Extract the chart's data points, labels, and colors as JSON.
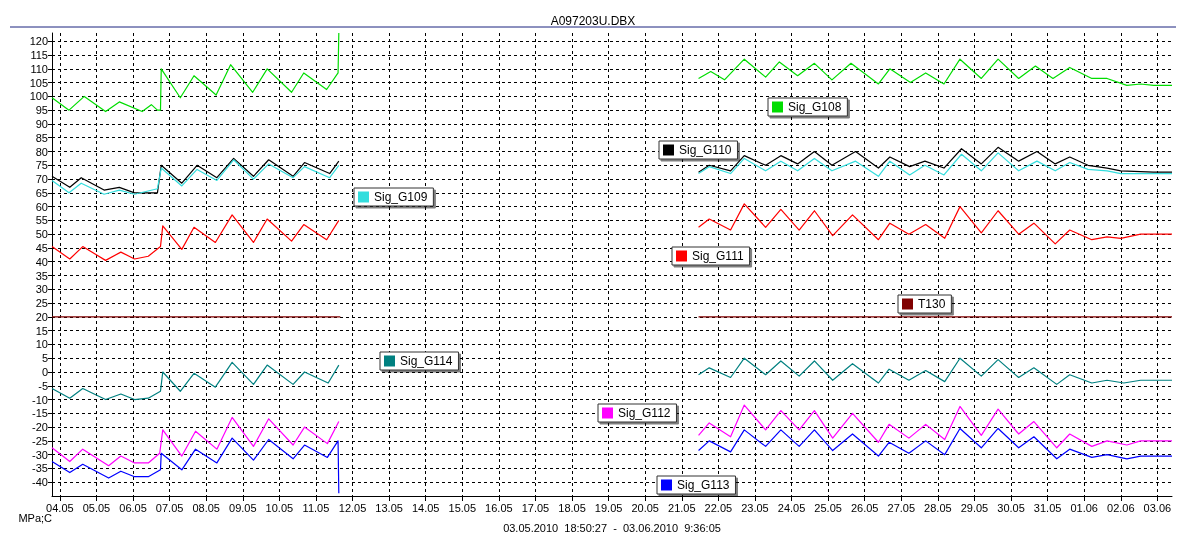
{
  "chart_data": {
    "type": "line",
    "title": "A097203U.DBX",
    "xlabel": "03.05.2010  18:50:27  -  03.06.2010  9:36:05",
    "ylabel": "MPa;C",
    "xlim": [
      "2010-05-03T18:50",
      "2010-06-03T09:36"
    ],
    "xticks": [
      {
        "value": "2010-05-04",
        "label": "04.05"
      },
      {
        "value": "2010-05-05",
        "label": "05.05"
      },
      {
        "value": "2010-05-06",
        "label": "06.05"
      },
      {
        "value": "2010-05-07",
        "label": "07.05"
      },
      {
        "value": "2010-05-08",
        "label": "08.05"
      },
      {
        "value": "2010-05-09",
        "label": "09.05"
      },
      {
        "value": "2010-05-10",
        "label": "10.05"
      },
      {
        "value": "2010-05-11",
        "label": "11.05"
      },
      {
        "value": "2010-05-12",
        "label": "12.05"
      },
      {
        "value": "2010-05-13",
        "label": "13.05"
      },
      {
        "value": "2010-05-14",
        "label": "14.05"
      },
      {
        "value": "2010-05-15",
        "label": "15.05"
      },
      {
        "value": "2010-05-16",
        "label": "16.05"
      },
      {
        "value": "2010-05-17",
        "label": "17.05"
      },
      {
        "value": "2010-05-18",
        "label": "18.05"
      },
      {
        "value": "2010-05-19",
        "label": "19.05"
      },
      {
        "value": "2010-05-20",
        "label": "20.05"
      },
      {
        "value": "2010-05-21",
        "label": "21.05"
      },
      {
        "value": "2010-05-22",
        "label": "22.05"
      },
      {
        "value": "2010-05-23",
        "label": "23.05"
      },
      {
        "value": "2010-05-24",
        "label": "24.05"
      },
      {
        "value": "2010-05-25",
        "label": "25.05"
      },
      {
        "value": "2010-05-26",
        "label": "26.05"
      },
      {
        "value": "2010-05-27",
        "label": "27.05"
      },
      {
        "value": "2010-05-28",
        "label": "28.05"
      },
      {
        "value": "2010-05-29",
        "label": "29.05"
      },
      {
        "value": "2010-05-30",
        "label": "30.05"
      },
      {
        "value": "2010-05-31",
        "label": "31.05"
      },
      {
        "value": "2010-06-01",
        "label": "01.06"
      },
      {
        "value": "2010-06-02",
        "label": "02.06"
      },
      {
        "value": "2010-06-03",
        "label": "03.06"
      }
    ],
    "ylim": [
      -45,
      123
    ],
    "yticks": [
      -40,
      -35,
      -30,
      -25,
      -20,
      -15,
      -10,
      -5,
      0,
      5,
      10,
      15,
      20,
      25,
      30,
      35,
      40,
      45,
      50,
      55,
      60,
      65,
      70,
      75,
      80,
      85,
      90,
      95,
      100,
      105,
      110,
      115,
      120
    ],
    "grid": true,
    "legend": "right",
    "marker": "none",
    "line_style": "solid",
    "series": [
      {
        "name": "Sig_G108",
        "color": "#00dd00",
        "x": [
          "2010-05-03T18:50",
          "2010-05-04T06:00",
          "2010-05-04T16:00",
          "2010-05-05T06:00",
          "2010-05-05T15:00",
          "2010-05-06T06:00",
          "2010-05-06T12:00",
          "2010-05-06T16:00",
          "2010-05-06T18:00",
          "2010-05-06T18:30",
          "2010-05-07T07:00",
          "2010-05-07T16:00",
          "2010-05-08T06:30",
          "2010-05-08T16:00",
          "2010-05-09T06:30",
          "2010-05-09T16:00",
          "2010-05-10T08:00",
          "2010-05-10T16:00",
          "2010-05-11T07:00",
          "2010-05-11T14:30",
          "2010-05-11T15:00",
          "2010-05-16",
          "2010-05-21T11:00",
          "2010-05-21T19:00",
          "2010-05-22T04:00",
          "2010-05-22T17:00",
          "2010-05-23T07:00",
          "2010-05-23T16:00",
          "2010-05-24T04:00",
          "2010-05-24T15:00",
          "2010-05-25T02:30",
          "2010-05-25T15:00",
          "2010-05-26T09:00",
          "2010-05-26T16:30",
          "2010-05-27T06:00",
          "2010-05-27T16:00",
          "2010-05-28T04:00",
          "2010-05-28T14:30",
          "2010-05-29T04:30",
          "2010-05-29T15:30",
          "2010-05-30T05:00",
          "2010-05-30T16:00",
          "2010-05-31T03:30",
          "2010-05-31T14:30",
          "2010-06-01T05:00",
          "2010-06-01T15:00",
          "2010-06-02T04:00",
          "2010-06-02T13:00",
          "2010-06-02T21:30",
          "2010-06-03T09:36"
        ],
        "values": [
          99.5,
          95,
          100,
          94.5,
          98,
          94.5,
          97,
          95,
          95,
          110,
          99.5,
          107.5,
          100.5,
          111.5,
          101.5,
          110,
          101.5,
          108.5,
          102.5,
          108.5,
          123,
          null,
          106.5,
          109,
          106,
          113.5,
          107,
          112.5,
          107.5,
          112,
          106,
          112,
          104.5,
          110,
          105,
          108.5,
          104.5,
          113.5,
          106.5,
          113.5,
          106.5,
          111,
          106.5,
          110.5,
          106.5,
          106.5,
          104,
          104.5,
          104,
          104
        ]
      },
      {
        "name": "Sig_G110",
        "color": "#000000",
        "x": [
          "2010-05-03T18:50",
          "2010-05-04T06:30",
          "2010-05-04T14:00",
          "2010-05-05T05:00",
          "2010-05-05T15:00",
          "2010-05-06T01:00",
          "2010-05-06T16:00",
          "2010-05-06T18:30",
          "2010-05-07T08:00",
          "2010-05-07T18:00",
          "2010-05-08T07:00",
          "2010-05-08T18:00",
          "2010-05-09T07:00",
          "2010-05-09T17:00",
          "2010-05-10T09:00",
          "2010-05-10T16:30",
          "2010-05-11T09:00",
          "2010-05-11T15:00",
          "2010-05-16",
          "2010-05-21T11:00",
          "2010-05-21T18:00",
          "2010-05-22T08:00",
          "2010-05-22T17:00",
          "2010-05-23T07:00",
          "2010-05-23T17:00",
          "2010-05-24T04:00",
          "2010-05-24T15:00",
          "2010-05-25T02:30",
          "2010-05-25T18:00",
          "2010-05-26T09:00",
          "2010-05-26T16:30",
          "2010-05-27T05:30",
          "2010-05-27T15:30",
          "2010-05-28T04:00",
          "2010-05-28T15:30",
          "2010-05-29T04:30",
          "2010-05-29T15:30",
          "2010-05-30T05:00",
          "2010-05-30T17:00",
          "2010-05-31T05:00",
          "2010-05-31T14:30",
          "2010-06-01T02:30",
          "2010-06-01T15:00",
          "2010-06-02T00:00",
          "2010-06-02T21:30",
          "2010-06-03T09:36"
        ],
        "values": [
          71,
          67,
          70.5,
          66,
          67,
          65,
          65,
          75,
          68.5,
          75,
          70.5,
          77.5,
          71,
          77,
          71,
          76,
          72,
          76.5,
          null,
          72.5,
          75,
          73,
          78.5,
          75,
          78.5,
          75.5,
          80,
          75,
          80,
          74,
          78,
          74.5,
          76.5,
          74,
          81,
          75.5,
          81.5,
          76.5,
          80,
          75.5,
          78,
          75,
          74,
          73,
          72.5,
          72.5
        ]
      },
      {
        "name": "Sig_G109",
        "color": "#33dddd",
        "x": [
          "2010-05-03T18:50",
          "2010-05-04T06:00",
          "2010-05-04T14:00",
          "2010-05-05T05:00",
          "2010-05-05T15:00",
          "2010-05-06T01:00",
          "2010-05-06T16:00",
          "2010-05-06T18:30",
          "2010-05-07T08:00",
          "2010-05-07T18:00",
          "2010-05-08T07:00",
          "2010-05-08T18:00",
          "2010-05-09T07:00",
          "2010-05-09T17:00",
          "2010-05-10T09:00",
          "2010-05-10T16:30",
          "2010-05-11T09:00",
          "2010-05-11T15:00",
          "2010-05-16",
          "2010-05-21T11:00",
          "2010-05-21T18:00",
          "2010-05-22T08:00",
          "2010-05-22T17:00",
          "2010-05-23T07:00",
          "2010-05-23T17:00",
          "2010-05-24T04:00",
          "2010-05-24T15:00",
          "2010-05-25T02:30",
          "2010-05-25T18:00",
          "2010-05-26T09:00",
          "2010-05-26T16:30",
          "2010-05-27T05:30",
          "2010-05-27T15:30",
          "2010-05-28T04:00",
          "2010-05-28T15:30",
          "2010-05-29T04:30",
          "2010-05-29T15:30",
          "2010-05-30T05:00",
          "2010-05-30T17:00",
          "2010-05-31T05:00",
          "2010-05-31T14:30",
          "2010-06-01T02:30",
          "2010-06-01T15:00",
          "2010-06-02T00:00",
          "2010-06-02T21:30",
          "2010-06-03T09:36"
        ],
        "values": [
          69.5,
          65,
          68.5,
          64.5,
          66,
          64.5,
          66.5,
          74,
          67.5,
          73.5,
          69.5,
          77,
          70,
          75.5,
          70.5,
          74.5,
          70.5,
          75,
          null,
          72,
          74.5,
          72,
          77.5,
          73,
          76.5,
          73,
          77.5,
          73,
          76.5,
          71,
          76.5,
          71.5,
          75,
          71.5,
          79,
          73,
          79.5,
          73,
          76.5,
          73,
          76,
          73.5,
          73,
          72,
          72,
          72
        ]
      },
      {
        "name": "Sig_G111",
        "color": "#ff0000",
        "x": [
          "2010-05-03T18:50",
          "2010-05-04T06:30",
          "2010-05-04T15:00",
          "2010-05-05T06:00",
          "2010-05-05T16:00",
          "2010-05-06T01:00",
          "2010-05-06T10:00",
          "2010-05-06T18:00",
          "2010-05-06T19:30",
          "2010-05-07T08:00",
          "2010-05-07T16:00",
          "2010-05-08T06:00",
          "2010-05-08T17:00",
          "2010-05-09T07:00",
          "2010-05-09T16:00",
          "2010-05-10T08:00",
          "2010-05-10T16:00",
          "2010-05-11T07:00",
          "2010-05-11T15:00",
          "2010-05-16",
          "2010-05-21T11:00",
          "2010-05-21T18:00",
          "2010-05-22T08:00",
          "2010-05-22T17:00",
          "2010-05-23T07:00",
          "2010-05-23T17:00",
          "2010-05-24T05:00",
          "2010-05-24T15:00",
          "2010-05-25T03:00",
          "2010-05-25T16:00",
          "2010-05-26T09:00",
          "2010-05-26T16:30",
          "2010-05-27T05:00",
          "2010-05-27T16:00",
          "2010-05-28T04:30",
          "2010-05-28T14:30",
          "2010-05-29T04:30",
          "2010-05-29T15:30",
          "2010-05-30T05:00",
          "2010-05-30T15:00",
          "2010-05-31T05:00",
          "2010-05-31T14:30",
          "2010-06-01T05:00",
          "2010-06-01T15:00",
          "2010-06-02T00:00",
          "2010-06-02T13:00",
          "2010-06-03T09:36"
        ],
        "values": [
          45.5,
          41,
          45.5,
          40.5,
          43.5,
          41,
          42,
          45.5,
          53,
          44.5,
          52.5,
          47,
          57,
          47,
          55.5,
          47.5,
          53.5,
          48,
          55,
          null,
          52.5,
          55.5,
          51.5,
          61,
          52.5,
          59,
          51.5,
          58.5,
          49.5,
          57,
          48,
          54,
          50,
          53.5,
          48.5,
          60,
          50.5,
          58.5,
          50,
          54,
          46.5,
          51.5,
          48,
          49,
          48.5,
          50,
          50
        ]
      },
      {
        "name": "T130",
        "color": "#800000",
        "x": [
          "2010-05-03T18:50",
          "2010-05-11T16:00",
          "2010-05-16",
          "2010-05-21T11:00",
          "2010-06-03T09:36"
        ],
        "values": [
          20,
          20,
          null,
          20,
          20
        ]
      },
      {
        "name": "Sig_G114",
        "color": "#008080",
        "x": [
          "2010-05-03T18:50",
          "2010-05-04T06:30",
          "2010-05-04T15:00",
          "2010-05-05T06:00",
          "2010-05-05T16:00",
          "2010-05-06T01:00",
          "2010-05-06T10:00",
          "2010-05-06T18:00",
          "2010-05-06T19:30",
          "2010-05-07T07:00",
          "2010-05-07T16:00",
          "2010-05-08T06:00",
          "2010-05-08T17:00",
          "2010-05-09T07:00",
          "2010-05-09T16:00",
          "2010-05-10T09:00",
          "2010-05-10T16:30",
          "2010-05-11T08:00",
          "2010-05-11T15:00",
          "2010-05-16",
          "2010-05-21T11:00",
          "2010-05-21T18:00",
          "2010-05-22T08:00",
          "2010-05-22T17:00",
          "2010-05-23T07:00",
          "2010-05-23T17:00",
          "2010-05-24T05:00",
          "2010-05-24T15:00",
          "2010-05-25T03:00",
          "2010-05-25T16:00",
          "2010-05-26T09:00",
          "2010-05-26T16:00",
          "2010-05-27T05:00",
          "2010-05-27T16:00",
          "2010-05-28T04:30",
          "2010-05-28T14:30",
          "2010-05-29T04:30",
          "2010-05-29T15:30",
          "2010-05-30T05:00",
          "2010-05-30T15:00",
          "2010-05-31T06:00",
          "2010-05-31T14:30",
          "2010-06-01T05:00",
          "2010-06-01T15:00",
          "2010-06-02T02:00",
          "2010-06-02T13:00",
          "2010-06-03T09:36"
        ],
        "values": [
          -6,
          -9.5,
          -6,
          -10,
          -8,
          -10,
          -9.5,
          -7,
          0,
          -7,
          -0.5,
          -5.5,
          3.5,
          -4.5,
          2.5,
          -4.5,
          0,
          -4,
          2.5,
          null,
          -1,
          1.5,
          -2,
          5,
          -1,
          4,
          -1.5,
          4,
          -3,
          3,
          -4,
          1,
          -3,
          0.5,
          -3.5,
          5,
          -1.5,
          4.5,
          -2,
          1.5,
          -4.5,
          -1,
          -4,
          -3,
          -4,
          -3,
          -3
        ]
      },
      {
        "name": "Sig_G112",
        "color": "#ff00ff",
        "x": [
          "2010-05-03T18:50",
          "2010-05-04T06:30",
          "2010-05-04T15:00",
          "2010-05-05T08:00",
          "2010-05-05T16:00",
          "2010-05-06T01:00",
          "2010-05-06T10:00",
          "2010-05-06T17:30",
          "2010-05-06T19:30",
          "2010-05-07T08:00",
          "2010-05-07T17:00",
          "2010-05-08T07:00",
          "2010-05-08T17:00",
          "2010-05-09T07:00",
          "2010-05-09T17:00",
          "2010-05-10T09:00",
          "2010-05-10T16:30",
          "2010-05-11T07:30",
          "2010-05-11T15:00",
          "2010-05-16",
          "2010-05-21T11:00",
          "2010-05-21T18:00",
          "2010-05-22T08:00",
          "2010-05-22T17:00",
          "2010-05-23T07:00",
          "2010-05-23T17:00",
          "2010-05-24T05:00",
          "2010-05-24T15:00",
          "2010-05-25T03:00",
          "2010-05-25T16:00",
          "2010-05-26T09:00",
          "2010-05-26T16:00",
          "2010-05-27T05:00",
          "2010-05-27T16:00",
          "2010-05-28T04:30",
          "2010-05-28T14:30",
          "2010-05-29T04:30",
          "2010-05-29T15:30",
          "2010-05-30T05:00",
          "2010-05-30T15:00",
          "2010-05-31T06:00",
          "2010-05-31T14:30",
          "2010-06-01T05:00",
          "2010-06-01T15:00",
          "2010-06-02T04:00",
          "2010-06-02T13:00",
          "2010-06-03T09:36"
        ],
        "values": [
          -27.5,
          -32.5,
          -28,
          -34,
          -30.5,
          -33,
          -33,
          -29.5,
          -21,
          -30.5,
          -21.5,
          -28,
          -16.5,
          -27,
          -17,
          -26.5,
          -20,
          -26,
          -18,
          null,
          -23,
          -18.5,
          -23.5,
          -12,
          -21,
          -14,
          -21,
          -14,
          -24,
          -15,
          -25.5,
          -19,
          -24,
          -19,
          -24.5,
          -12.5,
          -23,
          -13.5,
          -22.5,
          -18,
          -27.5,
          -22.5,
          -27,
          -25,
          -26.5,
          -25,
          -25
        ]
      },
      {
        "name": "Sig_G113",
        "color": "#0000ff",
        "x": [
          "2010-05-03T18:50",
          "2010-05-04T06:30",
          "2010-05-04T15:00",
          "2010-05-05T08:00",
          "2010-05-05T16:00",
          "2010-05-06T01:00",
          "2010-05-06T10:00",
          "2010-05-06T18:00",
          "2010-05-06T18:30",
          "2010-05-07T08:00",
          "2010-05-07T17:00",
          "2010-05-08T07:00",
          "2010-05-08T17:00",
          "2010-05-09T07:00",
          "2010-05-09T17:00",
          "2010-05-10T09:00",
          "2010-05-10T16:30",
          "2010-05-11T07:30",
          "2010-05-11T14:30",
          "2010-05-11T15:00",
          "2010-05-16",
          "2010-05-21T11:00",
          "2010-05-21T18:00",
          "2010-05-22T08:00",
          "2010-05-22T17:00",
          "2010-05-23T07:00",
          "2010-05-23T17:00",
          "2010-05-24T05:00",
          "2010-05-24T15:00",
          "2010-05-25T03:00",
          "2010-05-25T16:00",
          "2010-05-26T09:00",
          "2010-05-26T16:00",
          "2010-05-27T05:00",
          "2010-05-27T16:00",
          "2010-05-28T04:30",
          "2010-05-28T14:30",
          "2010-05-29T04:30",
          "2010-05-29T15:30",
          "2010-05-30T05:00",
          "2010-05-30T15:00",
          "2010-05-31T06:00",
          "2010-05-31T14:30",
          "2010-06-01T05:00",
          "2010-06-01T15:00",
          "2010-06-02T04:00",
          "2010-06-02T13:00",
          "2010-06-03T09:36"
        ],
        "values": [
          -32.5,
          -36.5,
          -33.5,
          -38.5,
          -36,
          -38,
          -38,
          -35.5,
          -29.5,
          -35.5,
          -28,
          -33,
          -24,
          -32,
          -24.5,
          -31.5,
          -26.5,
          -31,
          -25,
          -44,
          null,
          -28.5,
          -25,
          -29,
          -21,
          -27,
          -21,
          -27,
          -21,
          -28.5,
          -22.5,
          -30.5,
          -25.5,
          -29.5,
          -25,
          -30,
          -20.5,
          -27.5,
          -20.5,
          -27.5,
          -23.5,
          -31.5,
          -28,
          -31,
          -30,
          -31.5,
          -30.5,
          -30.5
        ]
      }
    ]
  }
}
